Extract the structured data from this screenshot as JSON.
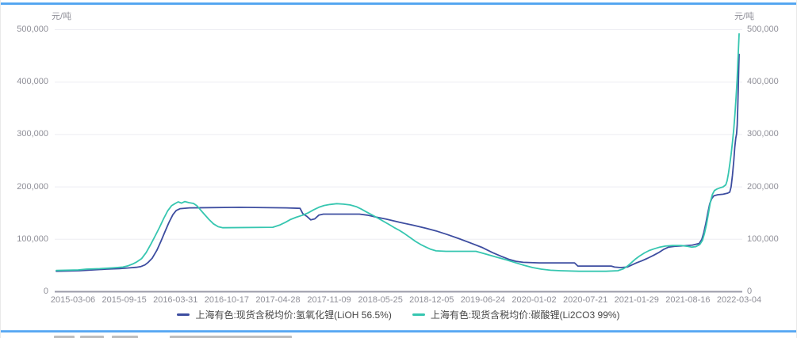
{
  "page": {
    "background": "#ffffff",
    "accent_color": "#4aa0f0"
  },
  "chart": {
    "y_axis_unit_left": "元/吨",
    "y_axis_unit_right": "元/吨",
    "y_tick_labels": [
      "500,000",
      "400,000",
      "300,000",
      "200,000",
      "100,000",
      "0"
    ],
    "y_tick_values": [
      500000,
      400000,
      300000,
      200000,
      100000,
      0
    ],
    "x_tick_labels": [
      "2015-03-06",
      "2015-09-15",
      "2016-03-31",
      "2016-10-17",
      "2017-04-28",
      "2017-11-09",
      "2018-05-25",
      "2018-12-05",
      "2019-06-24",
      "2020-01-02",
      "2020-07-21",
      "2021-01-29",
      "2021-08-16",
      "2022-03-04"
    ],
    "legend": [
      {
        "label": "上海有色:现货含税均价:氢氧化锂(LiOH 56.5%)",
        "color": "#3d4da0"
      },
      {
        "label": "上海有色:现货含税均价:碳酸锂(Li2CO3 99%)",
        "color": "#36c6b0"
      }
    ],
    "colors": {
      "grid_line": "#ededf2",
      "zero_axis_line": "#9b9ba8",
      "tick_text": "#8f8f98",
      "legend_text": "#474747"
    }
  },
  "chart_data": {
    "type": "line",
    "title": "",
    "xlabel": "",
    "ylabel": "元/吨",
    "ylim": [
      0,
      500000
    ],
    "x_range": [
      "2015-03-06",
      "2022-03-04"
    ],
    "x_encoding": "fraction of time axis, 0 = 2015-03-06 tick, 1 = 2022-03-04 tick",
    "grid": true,
    "legend_position": "bottom",
    "series": [
      {
        "name": "上海有色:现货含税均价:氢氧化锂(LiOH 56.5%)",
        "color": "#3d4da0",
        "points": [
          [
            -0.025,
            39000
          ],
          [
            0.01,
            40000
          ],
          [
            0.03,
            41500
          ],
          [
            0.05,
            43000
          ],
          [
            0.07,
            44000
          ],
          [
            0.085,
            45500
          ],
          [
            0.095,
            46500
          ],
          [
            0.102,
            48000
          ],
          [
            0.108,
            51000
          ],
          [
            0.113,
            56000
          ],
          [
            0.119,
            64000
          ],
          [
            0.126,
            79000
          ],
          [
            0.132,
            96000
          ],
          [
            0.138,
            114000
          ],
          [
            0.144,
            132000
          ],
          [
            0.15,
            147000
          ],
          [
            0.155,
            155000
          ],
          [
            0.161,
            158500
          ],
          [
            0.175,
            160000
          ],
          [
            0.25,
            161000
          ],
          [
            0.32,
            160000
          ],
          [
            0.341,
            159000
          ],
          [
            0.345,
            149000
          ],
          [
            0.351,
            144000
          ],
          [
            0.357,
            137000
          ],
          [
            0.363,
            139000
          ],
          [
            0.369,
            146000
          ],
          [
            0.376,
            148000
          ],
          [
            0.43,
            148000
          ],
          [
            0.442,
            146000
          ],
          [
            0.455,
            142500
          ],
          [
            0.47,
            138500
          ],
          [
            0.49,
            132500
          ],
          [
            0.51,
            127000
          ],
          [
            0.53,
            121000
          ],
          [
            0.545,
            116000
          ],
          [
            0.562,
            109000
          ],
          [
            0.58,
            101000
          ],
          [
            0.598,
            92500
          ],
          [
            0.615,
            84000
          ],
          [
            0.63,
            74500
          ],
          [
            0.643,
            67500
          ],
          [
            0.655,
            61500
          ],
          [
            0.665,
            58000
          ],
          [
            0.676,
            56000
          ],
          [
            0.7,
            55000
          ],
          [
            0.753,
            55000
          ],
          [
            0.758,
            49000
          ],
          [
            0.808,
            49000
          ],
          [
            0.813,
            47000
          ],
          [
            0.822,
            46000
          ],
          [
            0.832,
            47000
          ],
          [
            0.839,
            51000
          ],
          [
            0.846,
            55000
          ],
          [
            0.854,
            59000
          ],
          [
            0.862,
            63500
          ],
          [
            0.871,
            69000
          ],
          [
            0.879,
            74500
          ],
          [
            0.887,
            81000
          ],
          [
            0.894,
            85000
          ],
          [
            0.903,
            86500
          ],
          [
            0.915,
            87500
          ],
          [
            0.93,
            89000
          ],
          [
            0.94,
            92000
          ],
          [
            0.944,
            100000
          ],
          [
            0.947,
            113000
          ],
          [
            0.95,
            130000
          ],
          [
            0.953,
            150000
          ],
          [
            0.956,
            168000
          ],
          [
            0.959,
            178000
          ],
          [
            0.962,
            183000
          ],
          [
            0.968,
            185000
          ],
          [
            0.976,
            186000
          ],
          [
            0.983,
            188000
          ],
          [
            0.986,
            190000
          ],
          [
            0.988,
            200000
          ],
          [
            0.99,
            222000
          ],
          [
            0.992,
            250000
          ],
          [
            0.9935,
            275000
          ],
          [
            0.995,
            293000
          ],
          [
            0.9962,
            301000
          ],
          [
            0.9972,
            318000
          ],
          [
            0.998,
            352000
          ],
          [
            0.9988,
            392000
          ],
          [
            0.9994,
            425000
          ],
          [
            1.0,
            453000
          ]
        ]
      },
      {
        "name": "上海有色:现货含税均价:碳酸锂(Li2CO3 99%)",
        "color": "#36c6b0",
        "points": [
          [
            -0.025,
            40500
          ],
          [
            0.008,
            41500
          ],
          [
            0.02,
            43000
          ],
          [
            0.04,
            44000
          ],
          [
            0.06,
            45500
          ],
          [
            0.075,
            47000
          ],
          [
            0.083,
            49500
          ],
          [
            0.09,
            53000
          ],
          [
            0.096,
            57000
          ],
          [
            0.103,
            63000
          ],
          [
            0.11,
            75000
          ],
          [
            0.117,
            91000
          ],
          [
            0.124,
            108000
          ],
          [
            0.13,
            123000
          ],
          [
            0.136,
            139000
          ],
          [
            0.142,
            154000
          ],
          [
            0.148,
            164000
          ],
          [
            0.153,
            168000
          ],
          [
            0.158,
            171500
          ],
          [
            0.163,
            169000
          ],
          [
            0.168,
            172000
          ],
          [
            0.174,
            170000
          ],
          [
            0.181,
            168500
          ],
          [
            0.186,
            164000
          ],
          [
            0.191,
            157000
          ],
          [
            0.197,
            148000
          ],
          [
            0.204,
            138000
          ],
          [
            0.211,
            129500
          ],
          [
            0.218,
            124000
          ],
          [
            0.225,
            122000
          ],
          [
            0.3,
            123000
          ],
          [
            0.311,
            127500
          ],
          [
            0.319,
            132500
          ],
          [
            0.327,
            138000
          ],
          [
            0.335,
            142000
          ],
          [
            0.345,
            146000
          ],
          [
            0.353,
            150500
          ],
          [
            0.361,
            156000
          ],
          [
            0.369,
            161000
          ],
          [
            0.377,
            164500
          ],
          [
            0.386,
            166500
          ],
          [
            0.396,
            168000
          ],
          [
            0.406,
            167000
          ],
          [
            0.416,
            165500
          ],
          [
            0.426,
            162000
          ],
          [
            0.433,
            157500
          ],
          [
            0.441,
            152000
          ],
          [
            0.449,
            146500
          ],
          [
            0.457,
            141000
          ],
          [
            0.466,
            134500
          ],
          [
            0.474,
            128500
          ],
          [
            0.482,
            122500
          ],
          [
            0.49,
            117000
          ],
          [
            0.498,
            110500
          ],
          [
            0.506,
            103500
          ],
          [
            0.514,
            96000
          ],
          [
            0.522,
            90000
          ],
          [
            0.53,
            85000
          ],
          [
            0.537,
            81000
          ],
          [
            0.545,
            78000
          ],
          [
            0.56,
            77000
          ],
          [
            0.605,
            77000
          ],
          [
            0.621,
            71500
          ],
          [
            0.637,
            65500
          ],
          [
            0.651,
            60500
          ],
          [
            0.664,
            55500
          ],
          [
            0.677,
            50500
          ],
          [
            0.69,
            46000
          ],
          [
            0.703,
            43000
          ],
          [
            0.717,
            41000
          ],
          [
            0.732,
            40000
          ],
          [
            0.76,
            39000
          ],
          [
            0.8,
            39000
          ],
          [
            0.818,
            40000
          ],
          [
            0.826,
            43500
          ],
          [
            0.832,
            48500
          ],
          [
            0.838,
            55000
          ],
          [
            0.844,
            62000
          ],
          [
            0.851,
            68500
          ],
          [
            0.858,
            74000
          ],
          [
            0.865,
            78500
          ],
          [
            0.873,
            82000
          ],
          [
            0.881,
            85000
          ],
          [
            0.889,
            87000
          ],
          [
            0.9,
            88000
          ],
          [
            0.913,
            88000
          ],
          [
            0.923,
            86500
          ],
          [
            0.929,
            85000
          ],
          [
            0.935,
            86000
          ],
          [
            0.941,
            90000
          ],
          [
            0.945,
            98000
          ],
          [
            0.948,
            111000
          ],
          [
            0.951,
            128000
          ],
          [
            0.954,
            150000
          ],
          [
            0.957,
            172000
          ],
          [
            0.96,
            186000
          ],
          [
            0.963,
            193000
          ],
          [
            0.967,
            196000
          ],
          [
            0.971,
            198000
          ],
          [
            0.976,
            200000
          ],
          [
            0.98,
            204000
          ],
          [
            0.982,
            212000
          ],
          [
            0.984,
            226000
          ],
          [
            0.986,
            243000
          ],
          [
            0.988,
            262000
          ],
          [
            0.99,
            285000
          ],
          [
            0.992,
            311000
          ],
          [
            0.9938,
            340000
          ],
          [
            0.9955,
            372000
          ],
          [
            0.997,
            405000
          ],
          [
            0.998,
            434000
          ],
          [
            0.999,
            464000
          ],
          [
            1.0,
            492000
          ]
        ]
      }
    ]
  }
}
